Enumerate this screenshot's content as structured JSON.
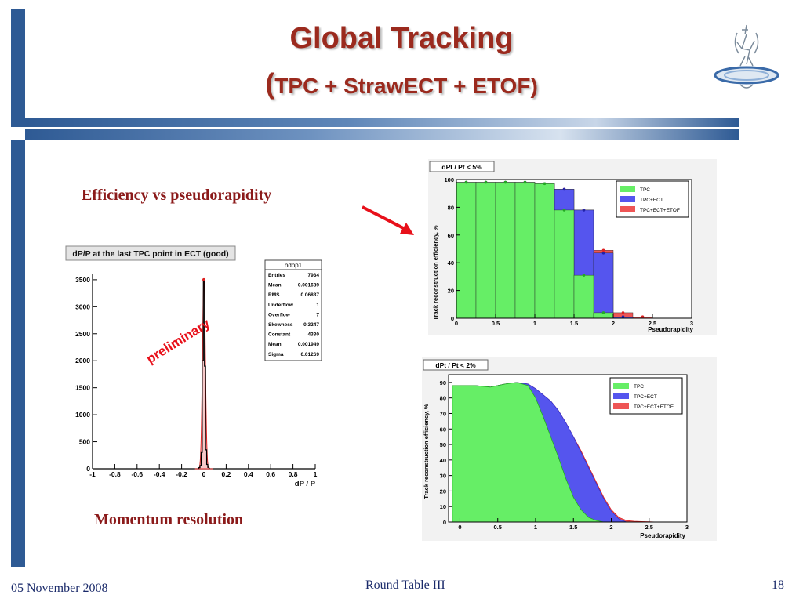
{
  "slide": {
    "title": "Global Tracking",
    "subtitle_open": "(",
    "subtitle": "TPC + StrawECT + ETOF)",
    "caption_efficiency": "Efficiency vs pseudorapidity",
    "caption_momentum": "Momentum resolution",
    "footer_date": "05 November 2008",
    "footer_center": "Round Table III",
    "page_number": "18",
    "overlay_text": "preliminary",
    "colors": {
      "accent_bar": "#2e5a94",
      "title": "#9b2a1e",
      "arrow": "#e8101a"
    }
  },
  "chart_data": [
    {
      "type": "histogram",
      "title": "dP/P at the last TPC point in ECT (good)",
      "xlabel": "dP / P",
      "ylabel": "",
      "xlim": [
        -1,
        1
      ],
      "ylim": [
        0,
        3600
      ],
      "x_ticks": [
        "-1",
        "-0.8",
        "-0.6",
        "-0.4",
        "-0.2",
        "0",
        "0.2",
        "0.4",
        "0.6",
        "0.8",
        "1"
      ],
      "y_ticks": [
        "0",
        "500",
        "1000",
        "1500",
        "2000",
        "2500",
        "3000",
        "3500"
      ],
      "peak": {
        "x": 0.0,
        "value": 3500
      },
      "stats": {
        "name": "hdpp1",
        "rows": [
          [
            "Entries",
            "7934"
          ],
          [
            "Mean",
            "0.001689"
          ],
          [
            "RMS",
            "0.06837"
          ],
          [
            "Underflow",
            "1"
          ],
          [
            "Overflow",
            "7"
          ],
          [
            "Skewness",
            "0.3247"
          ],
          [
            "Constant",
            "4330"
          ],
          [
            "Mean",
            "0.001949"
          ],
          [
            "Sigma",
            "0.01269"
          ]
        ]
      }
    },
    {
      "type": "bar",
      "title": "dPt / Pt < 5%",
      "xlabel": "Pseudorapidity",
      "ylabel": "Track reconstruction efficiency, %",
      "xlim": [
        0,
        3
      ],
      "ylim": [
        0,
        100
      ],
      "x_ticks": [
        "0",
        "0.5",
        "1",
        "1.5",
        "2",
        "2.5",
        "3"
      ],
      "y_ticks": [
        "0",
        "20",
        "40",
        "60",
        "80",
        "100"
      ],
      "bin_edges": [
        0,
        0.25,
        0.5,
        0.75,
        1,
        1.25,
        1.5,
        1.75,
        2,
        2.25,
        2.5
      ],
      "legend": [
        "TPC",
        "TPC+ECT",
        "TPC+ECT+ETOF"
      ],
      "series": [
        {
          "name": "TPC",
          "color": "#66ee66",
          "values": [
            98,
            98,
            98,
            98,
            97,
            78,
            31,
            4,
            0,
            0
          ]
        },
        {
          "name": "TPC+ECT",
          "color": "#5555ee",
          "values": [
            98,
            98,
            98,
            98,
            97,
            93,
            78,
            47,
            1,
            0
          ]
        },
        {
          "name": "TPC+ECT+ETOF",
          "color": "#ee5555",
          "values": [
            98,
            98,
            98,
            98,
            97,
            93,
            78,
            49,
            4,
            1
          ]
        }
      ]
    },
    {
      "type": "area",
      "title": "dPt / Pt < 2%",
      "xlabel": "Pseudorapidity",
      "ylabel": "Track reconstruction efficiency, %",
      "xlim": [
        -0.15,
        3
      ],
      "ylim": [
        0,
        95
      ],
      "x_ticks": [
        "0",
        "0.5",
        "1",
        "1.5",
        "2",
        "2.5",
        "3"
      ],
      "y_ticks": [
        "0",
        "10",
        "20",
        "30",
        "40",
        "50",
        "60",
        "70",
        "80",
        "90"
      ],
      "legend": [
        "TPC",
        "TPC+ECT",
        "TPC+ECT+ETOF"
      ],
      "x": [
        -0.1,
        0,
        0.2,
        0.4,
        0.5,
        0.6,
        0.75,
        0.9,
        1.0,
        1.1,
        1.2,
        1.3,
        1.4,
        1.5,
        1.6,
        1.7,
        1.8,
        1.9,
        2.0,
        2.1,
        2.2,
        2.3,
        2.4,
        2.5,
        2.6
      ],
      "series": [
        {
          "name": "TPC",
          "color": "#66ee66",
          "values": [
            88,
            88,
            88,
            87,
            88,
            89,
            90,
            88,
            80,
            68,
            55,
            42,
            28,
            16,
            8,
            3,
            1,
            0,
            0,
            0,
            0,
            0,
            0,
            0,
            0
          ]
        },
        {
          "name": "TPC+ECT",
          "color": "#5555ee",
          "values": [
            88,
            88,
            88,
            87,
            88,
            89,
            90,
            89,
            86,
            82,
            78,
            72,
            64,
            55,
            45,
            35,
            25,
            15,
            7,
            2,
            0,
            0,
            0,
            0,
            0
          ]
        },
        {
          "name": "TPC+ECT+ETOF",
          "color": "#ee5555",
          "values": [
            88,
            88,
            88,
            87,
            88,
            89,
            90,
            89,
            86,
            82,
            78,
            72,
            64,
            55,
            46,
            36,
            26,
            16,
            8,
            3,
            1,
            0.5,
            0.3,
            0.2,
            0
          ]
        }
      ]
    }
  ]
}
